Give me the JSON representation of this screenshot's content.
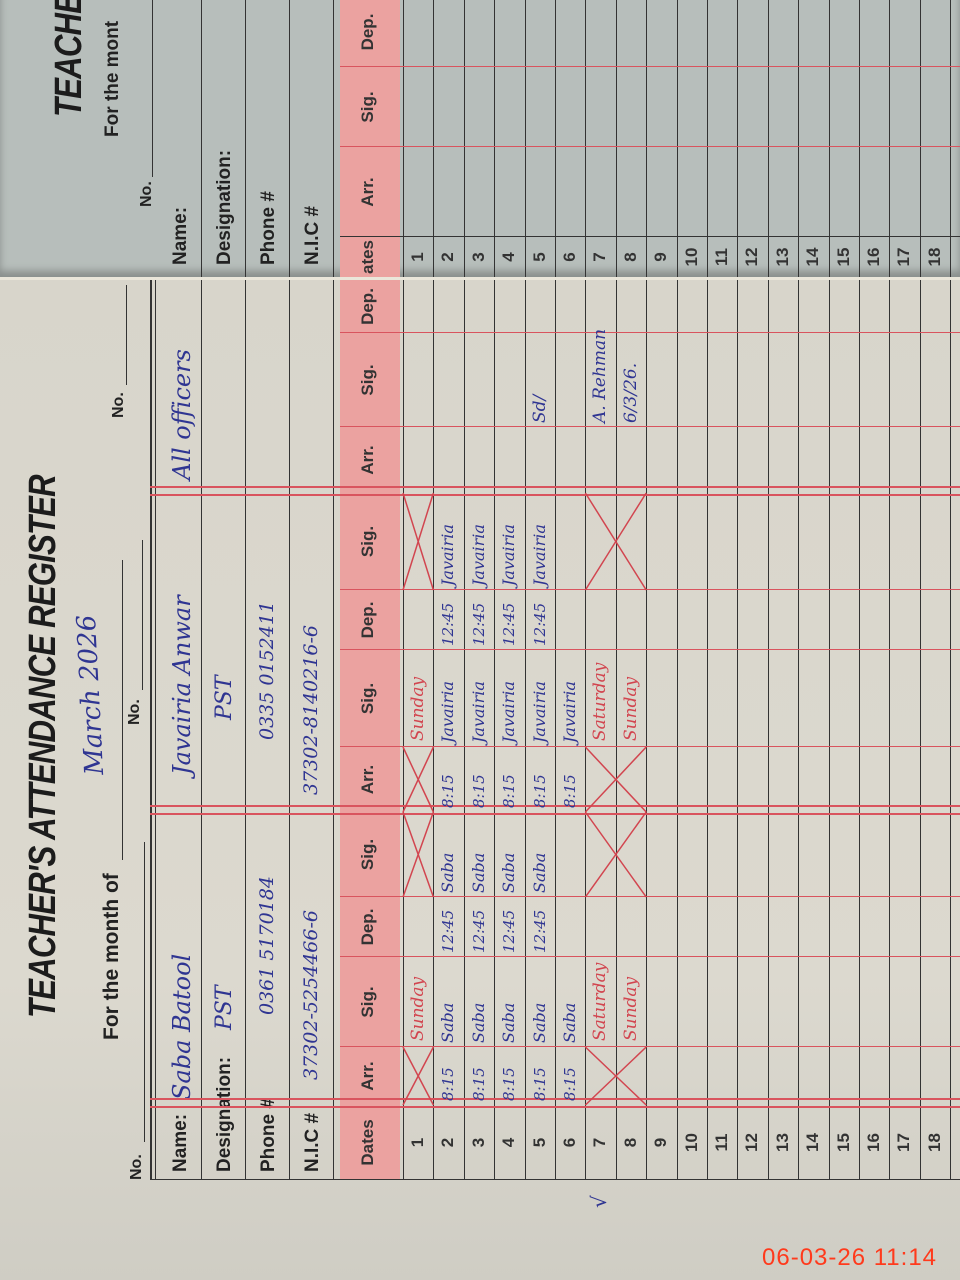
{
  "main_page": {
    "title": "TEACHER'S ATTENDANCE REGISTER",
    "month_label": "For the month of",
    "month_value": "March 2026",
    "no_label": "No.",
    "field_labels": {
      "name": "Name:",
      "designation": "Designation:",
      "phone": "Phone #",
      "nic": "N.I.C #"
    },
    "teachers": [
      {
        "name": "Saba Batool",
        "designation": "PST",
        "phone": "0361 5170184",
        "nic": "37302-5254466-6"
      },
      {
        "name": "Javairia Anwar",
        "designation": "PST",
        "phone": "0335 0152411",
        "nic": "37302-8140216-6"
      },
      {
        "name": "All officers",
        "designation": "",
        "phone": "",
        "nic": ""
      }
    ],
    "column_headers": [
      "Dates",
      "Arr.",
      "Sig.",
      "Dep.",
      "Sig.",
      "Arr.",
      "Sig.",
      "Dep.",
      "Sig.",
      "Arr.",
      "Sig.",
      "Dep."
    ],
    "check_mark": "√",
    "rows": [
      {
        "date": "1",
        "cells": [
          "",
          "",
          "",
          "",
          "",
          "",
          "",
          "",
          "",
          "",
          ""
        ],
        "notes": [
          "Sunday",
          "Sunday"
        ]
      },
      {
        "date": "2",
        "cells": [
          "8:15",
          "Saba",
          "12:45",
          "Saba",
          "8:15",
          "Javairia",
          "12:45",
          "Javairia",
          "",
          "",
          ""
        ],
        "notes": [
          "",
          ""
        ]
      },
      {
        "date": "3",
        "cells": [
          "8:15",
          "Saba",
          "12:45",
          "Saba",
          "8:15",
          "Javairia",
          "12:45",
          "Javairia",
          "",
          "",
          ""
        ],
        "notes": [
          "",
          ""
        ]
      },
      {
        "date": "4",
        "cells": [
          "8:15",
          "Saba",
          "12:45",
          "Saba",
          "8:15",
          "Javairia",
          "12:45",
          "Javairia",
          "",
          "",
          ""
        ],
        "notes": [
          "",
          ""
        ]
      },
      {
        "date": "5",
        "cells": [
          "8:15",
          "Saba",
          "12:45",
          "Saba",
          "8:15",
          "Javairia",
          "12:45",
          "Javairia",
          "",
          "Sd/",
          ""
        ],
        "notes": [
          "",
          ""
        ]
      },
      {
        "date": "6",
        "cells": [
          "8:15",
          "Saba",
          "",
          "",
          "8:15",
          "Javairia",
          "",
          "",
          "",
          "",
          ""
        ],
        "notes": [
          "",
          ""
        ]
      },
      {
        "date": "7",
        "cells": [
          "",
          "",
          "",
          "",
          "",
          "",
          "",
          "",
          "",
          "A. Rehman",
          ""
        ],
        "notes": [
          "Saturday",
          "Saturday"
        ]
      },
      {
        "date": "8",
        "cells": [
          "",
          "",
          "",
          "",
          "",
          "",
          "",
          "",
          "",
          "6/3/26.",
          ""
        ],
        "notes": [
          "Sunday",
          "Sunday"
        ]
      },
      {
        "date": "9",
        "cells": [
          "",
          "",
          "",
          "",
          "",
          "",
          "",
          "",
          "",
          "",
          ""
        ],
        "notes": [
          "",
          ""
        ]
      },
      {
        "date": "10",
        "cells": [
          "",
          "",
          "",
          "",
          "",
          "",
          "",
          "",
          "",
          "",
          ""
        ],
        "notes": [
          "",
          ""
        ]
      },
      {
        "date": "11",
        "cells": [
          "",
          "",
          "",
          "",
          "",
          "",
          "",
          "",
          "",
          "",
          ""
        ],
        "notes": [
          "",
          ""
        ]
      },
      {
        "date": "12",
        "cells": [
          "",
          "",
          "",
          "",
          "",
          "",
          "",
          "",
          "",
          "",
          ""
        ],
        "notes": [
          "",
          ""
        ]
      },
      {
        "date": "13",
        "cells": [
          "",
          "",
          "",
          "",
          "",
          "",
          "",
          "",
          "",
          "",
          ""
        ],
        "notes": [
          "",
          ""
        ]
      },
      {
        "date": "14",
        "cells": [
          "",
          "",
          "",
          "",
          "",
          "",
          "",
          "",
          "",
          "",
          ""
        ],
        "notes": [
          "",
          ""
        ]
      },
      {
        "date": "15",
        "cells": [
          "",
          "",
          "",
          "",
          "",
          "",
          "",
          "",
          "",
          "",
          ""
        ],
        "notes": [
          "",
          ""
        ]
      },
      {
        "date": "16",
        "cells": [
          "",
          "",
          "",
          "",
          "",
          "",
          "",
          "",
          "",
          "",
          ""
        ],
        "notes": [
          "",
          ""
        ]
      },
      {
        "date": "17",
        "cells": [
          "",
          "",
          "",
          "",
          "",
          "",
          "",
          "",
          "",
          "",
          ""
        ],
        "notes": [
          "",
          ""
        ]
      },
      {
        "date": "18",
        "cells": [
          "",
          "",
          "",
          "",
          "",
          "",
          "",
          "",
          "",
          "",
          ""
        ],
        "notes": [
          "",
          ""
        ]
      }
    ]
  },
  "back_page": {
    "title": "TEACHE",
    "month_label": "For the mont",
    "no_label": "No.",
    "field_labels": {
      "name": "Name:",
      "designation": "Designation:",
      "phone": "Phone #",
      "nic": "N.I.C #"
    },
    "column_headers": [
      "ates",
      "Arr.",
      "Sig.",
      "Dep."
    ],
    "dates": [
      "1",
      "2",
      "3",
      "4",
      "5",
      "6",
      "7",
      "8",
      "9",
      "10",
      "11",
      "12",
      "13",
      "14",
      "15",
      "16",
      "17",
      "18"
    ]
  },
  "timestamp": "06-03-26  11:14",
  "colors": {
    "red_rule": "#d9545e",
    "header_pink": "#eba2a0",
    "ink_blue": "#2f3592",
    "ink_red": "#d2454f",
    "timestamp": "#ff3a1c"
  }
}
